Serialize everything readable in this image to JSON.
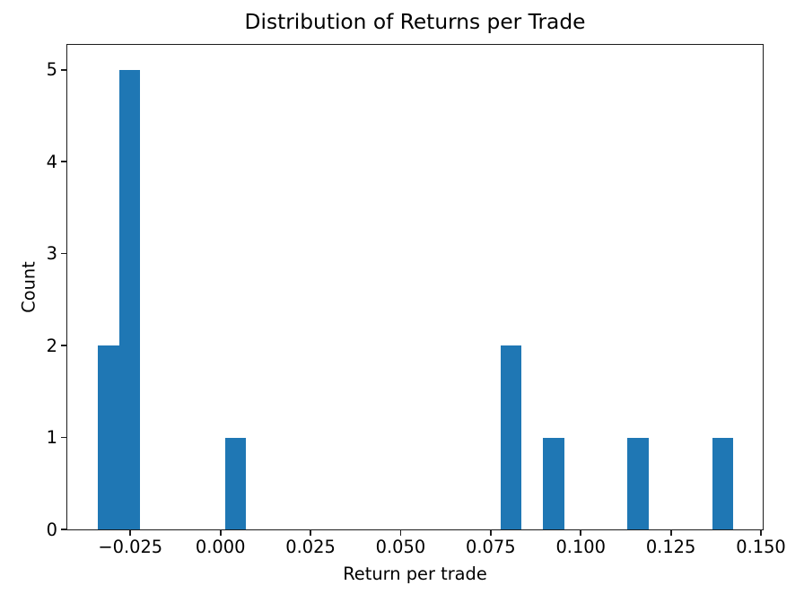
{
  "figure": {
    "background_color": "#ffffff",
    "bar_color": "#1f77b4",
    "spine_color": "#1c1c1c",
    "text_color": "#000000"
  },
  "chart_data": {
    "type": "bar",
    "subtype": "histogram",
    "title": "Distribution of Returns per Trade",
    "xlabel": "Return per trade",
    "ylabel": "Count",
    "xlim": [
      -0.0425,
      0.1505
    ],
    "ylim": [
      0,
      5.27
    ],
    "grid": false,
    "legend": "none",
    "bin_width": 0.00588,
    "bins": [
      {
        "left": -0.034,
        "count": 2
      },
      {
        "left": -0.02812,
        "count": 5
      },
      {
        "left": 0.00128,
        "count": 1
      },
      {
        "left": 0.07772,
        "count": 2
      },
      {
        "left": 0.08948,
        "count": 1
      },
      {
        "left": 0.113,
        "count": 1
      },
      {
        "left": 0.13652,
        "count": 1
      }
    ],
    "x_ticks": [
      {
        "value": -0.025,
        "label": "−0.025"
      },
      {
        "value": 0.0,
        "label": "0.000"
      },
      {
        "value": 0.025,
        "label": "0.025"
      },
      {
        "value": 0.05,
        "label": "0.050"
      },
      {
        "value": 0.075,
        "label": "0.075"
      },
      {
        "value": 0.1,
        "label": "0.100"
      },
      {
        "value": 0.125,
        "label": "0.125"
      },
      {
        "value": 0.15,
        "label": "0.150"
      }
    ],
    "y_ticks": [
      {
        "value": 0,
        "label": "0"
      },
      {
        "value": 1,
        "label": "1"
      },
      {
        "value": 2,
        "label": "2"
      },
      {
        "value": 3,
        "label": "3"
      },
      {
        "value": 4,
        "label": "4"
      },
      {
        "value": 5,
        "label": "5"
      }
    ]
  }
}
